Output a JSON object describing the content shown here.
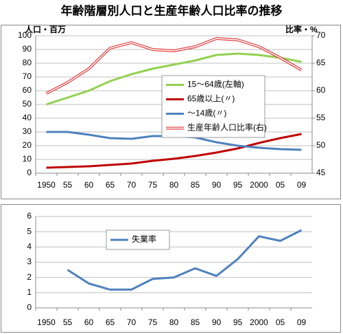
{
  "chart_data": [
    {
      "type": "line",
      "title": "年齢階層別人口と生産年齢人口比率の推移",
      "ylabel": "人口・百万",
      "y2label": "比率・%",
      "categories": [
        "1950",
        "55",
        "60",
        "65",
        "70",
        "75",
        "80",
        "85",
        "90",
        "95",
        "2000",
        "05",
        "09"
      ],
      "ylim": [
        0,
        100
      ],
      "yticks": [
        0,
        10,
        20,
        30,
        40,
        50,
        60,
        70,
        80,
        90,
        100
      ],
      "y2lim": [
        45,
        70
      ],
      "y2ticks": [
        45,
        50,
        55,
        60,
        65,
        70
      ],
      "grid": true,
      "series": [
        {
          "name": "15〜64歳(左軸)",
          "color": "#92d050",
          "values": [
            50,
            55,
            60,
            67,
            72,
            76,
            79,
            82,
            86,
            87,
            86,
            84,
            81
          ]
        },
        {
          "name": "65歳以上(〃)",
          "color": "#c00000",
          "values": [
            4,
            4.5,
            5,
            6,
            7,
            9,
            10.5,
            12.5,
            15,
            18,
            22,
            25.5,
            28.5
          ]
        },
        {
          "name": "〜14歳(〃)",
          "color": "#4f81bd",
          "values": [
            30,
            30,
            28,
            25.5,
            25,
            27,
            27,
            26,
            22.5,
            20,
            18.5,
            17.5,
            17
          ]
        },
        {
          "name": "生産年齢人口比率(右)",
          "color": "#e04040",
          "axis": "y2",
          "values": [
            59.5,
            61.5,
            64,
            67.75,
            68.75,
            67.5,
            67.25,
            68,
            69.5,
            69.25,
            68,
            66,
            63.75
          ]
        }
      ]
    },
    {
      "type": "line",
      "categories": [
        "1950",
        "55",
        "60",
        "65",
        "70",
        "75",
        "80",
        "85",
        "90",
        "95",
        "2000",
        "05",
        "09"
      ],
      "ylim": [
        0,
        6
      ],
      "yticks": [
        0,
        1,
        2,
        3,
        4,
        5,
        6
      ],
      "grid": true,
      "series": [
        {
          "name": "失業率",
          "color": "#4f81bd",
          "values": [
            null,
            2.5,
            1.6,
            1.2,
            1.2,
            1.9,
            2.0,
            2.6,
            2.1,
            3.2,
            4.7,
            4.4,
            5.1
          ]
        }
      ]
    }
  ]
}
